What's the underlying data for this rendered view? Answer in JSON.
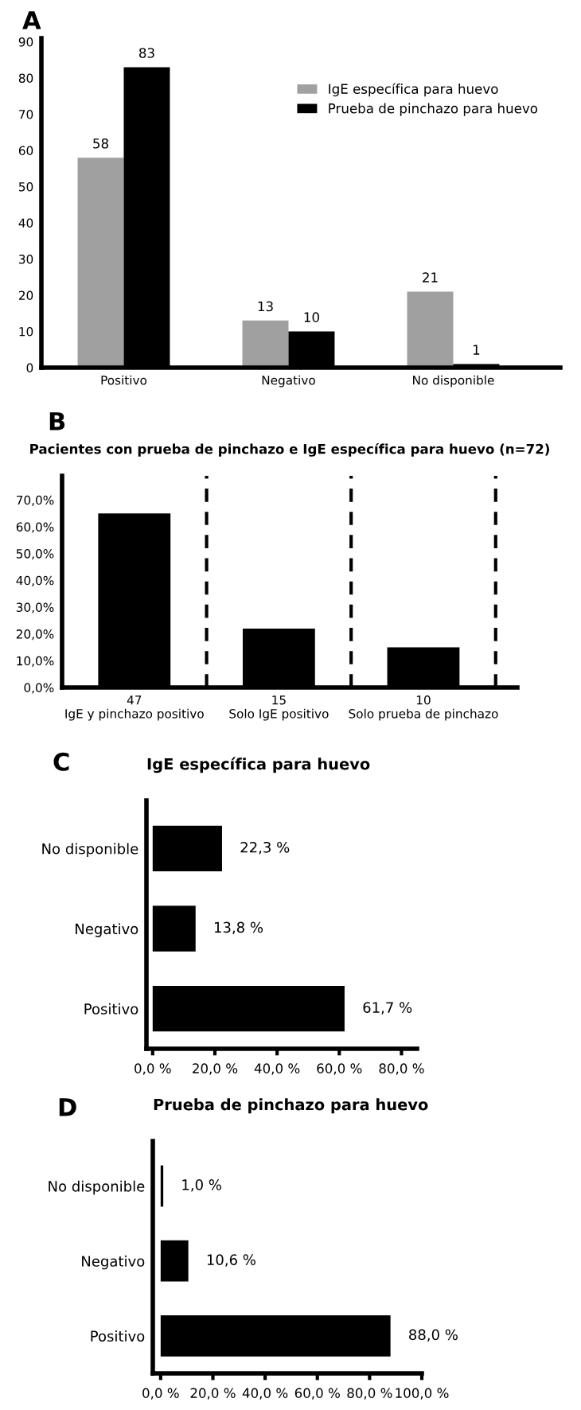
{
  "chart_data": [
    {
      "type": "bar",
      "annotations": [
        "A"
      ],
      "categories": [
        "Positivo",
        "Negativo",
        "No disponible"
      ],
      "series": [
        {
          "name": "IgE específica para huevo",
          "color": "#a0a0a0",
          "values": [
            58,
            13,
            21
          ]
        },
        {
          "name": "Prueba de pinchazo para huevo",
          "color": "#000000",
          "values": [
            83,
            10,
            1
          ]
        }
      ],
      "ylim": [
        0,
        91
      ],
      "yticks": [
        0,
        10,
        20,
        30,
        40,
        50,
        60,
        70,
        80,
        90
      ],
      "data_labels": true,
      "legend": "top right"
    },
    {
      "type": "bar",
      "title": "Pacientes con prueba de pinchazo e IgE específica para huevo (n=72)",
      "annotations": [
        "B"
      ],
      "categories": [
        "47\nIgE y pinchazo positivo",
        "15\nSolo IgE positivo",
        "10\nSolo prueba de pinchazo"
      ],
      "series": [
        {
          "color": "#000000",
          "values": [
            65,
            22,
            15
          ]
        }
      ],
      "ylim": [
        0,
        79
      ],
      "yticks": [
        {
          "value": 0,
          "label": "0,0%"
        },
        {
          "value": 10,
          "label": "10,0%"
        },
        {
          "value": 20,
          "label": "20,0%"
        },
        {
          "value": 30,
          "label": "30,0%"
        },
        {
          "value": 40,
          "label": "40,0%"
        },
        {
          "value": 50,
          "label": "50,0%"
        },
        {
          "value": 60,
          "label": "60,0%"
        },
        {
          "value": 70,
          "label": "70,0%"
        }
      ]
    },
    {
      "type": "bar",
      "orientation": "horizontal",
      "title": "IgE específica para huevo",
      "annotations": [
        "C"
      ],
      "categories": [
        "No disponible",
        "Negativo",
        "Positivo"
      ],
      "series": [
        {
          "color": "#000000",
          "values": [
            22.3,
            13.8,
            61.7
          ],
          "value_labels": [
            "22,3 %",
            "13,8 %",
            "61,7 %"
          ]
        }
      ],
      "xlim": [
        -2,
        85
      ],
      "xticks": [
        {
          "value": 0,
          "label": "0,0 %"
        },
        {
          "value": 20,
          "label": "20,0 %"
        },
        {
          "value": 40,
          "label": "40,0 %"
        },
        {
          "value": 60,
          "label": "60,0 %"
        },
        {
          "value": 80,
          "label": "80,0 %"
        }
      ]
    },
    {
      "type": "bar",
      "orientation": "horizontal",
      "title": "Prueba de pinchazo para huevo",
      "annotations": [
        "D"
      ],
      "categories": [
        "No disponible",
        "Negativo",
        "Positivo"
      ],
      "series": [
        {
          "color": "#000000",
          "values": [
            1.0,
            10.6,
            88.0
          ],
          "value_labels": [
            "1,0 %",
            "10,6 %",
            "88,0 %"
          ]
        }
      ],
      "xlim": [
        -3,
        100
      ],
      "xticks": [
        {
          "value": 0,
          "label": "0,0 %"
        },
        {
          "value": 20,
          "label": "20,0 %"
        },
        {
          "value": 40,
          "label": "40,0 %"
        },
        {
          "value": 60,
          "label": "60,0 %"
        },
        {
          "value": 80,
          "label": "80,0 %"
        },
        {
          "value": 100,
          "label": "100,0 %"
        }
      ]
    }
  ]
}
